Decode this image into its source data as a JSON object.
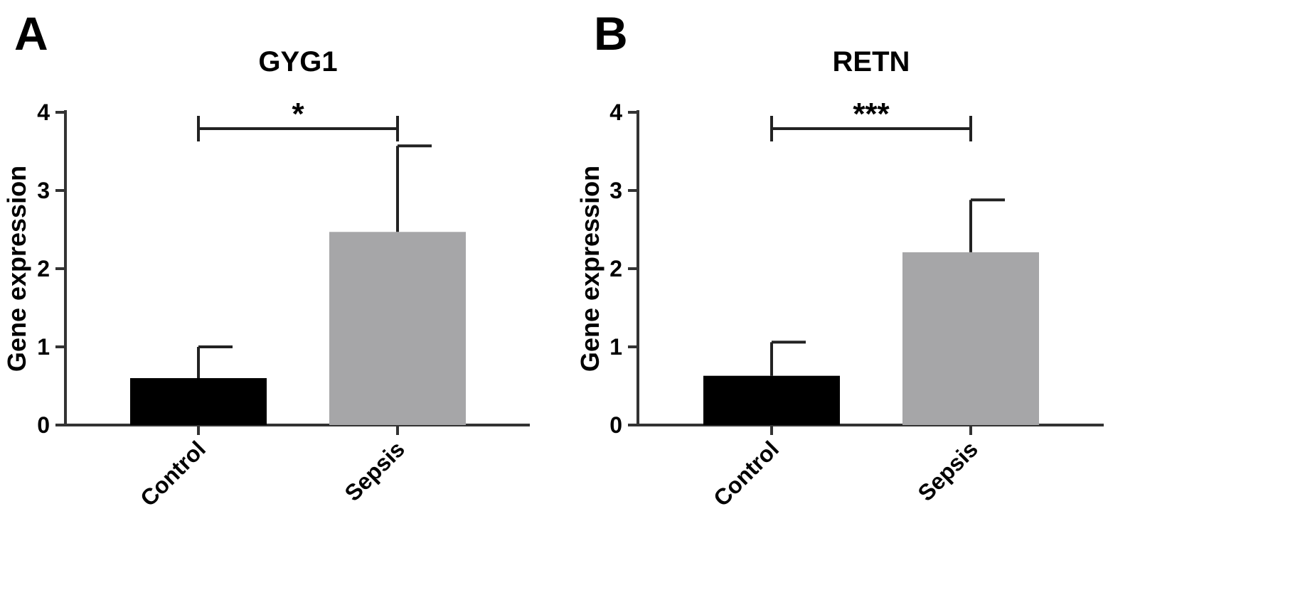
{
  "chart_data": [
    {
      "type": "bar",
      "panel": "A",
      "title": "GYG1",
      "xlabel": "",
      "ylabel": "Gene expression",
      "ylim": [
        0,
        4
      ],
      "yticks": [
        "0",
        "1",
        "2",
        "3",
        "4"
      ],
      "categories": [
        "Control",
        "Sepsis"
      ],
      "values": [
        0.6,
        2.47
      ],
      "error_upper": [
        1.0,
        3.57
      ],
      "colors": [
        "#000000",
        "#a6a6a8"
      ],
      "significance": {
        "label": "*",
        "between": [
          0,
          1
        ],
        "y": 3.9
      }
    },
    {
      "type": "bar",
      "panel": "B",
      "title": "RETN",
      "xlabel": "",
      "ylabel": "Gene expression",
      "ylim": [
        0,
        4
      ],
      "yticks": [
        "0",
        "1",
        "2",
        "3",
        "4"
      ],
      "categories": [
        "Control",
        "Sepsis"
      ],
      "values": [
        0.63,
        2.21
      ],
      "error_upper": [
        1.06,
        2.88
      ],
      "colors": [
        "#000000",
        "#a6a6a8"
      ],
      "significance": {
        "label": "***",
        "between": [
          0,
          1
        ],
        "y": 3.9
      }
    }
  ]
}
